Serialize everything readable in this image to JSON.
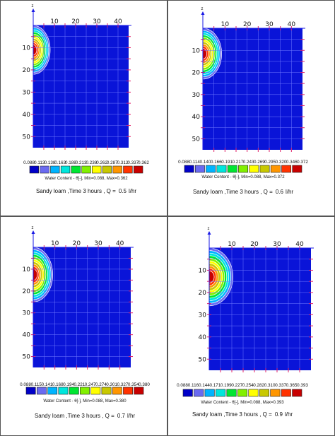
{
  "chart_data": [
    {
      "type": "heatmap",
      "title": "",
      "xlabel": "",
      "ylabel": "",
      "x_axis_marker": "x",
      "z_axis_marker": "z",
      "x_ticks": [
        10,
        20,
        30,
        40
      ],
      "y_ticks": [
        10,
        20,
        30,
        40,
        50
      ],
      "xlim": [
        0,
        45
      ],
      "ylim": [
        0,
        55
      ],
      "grid": true,
      "legend": {
        "position": "bottom",
        "title": "Water Content - θ[-], Min=0.088, Max=0.362",
        "min": 0.088,
        "max": 0.362,
        "scale_labels": [
          "0.088",
          "0.113",
          "0.138",
          "0.163",
          "0.188",
          "0.213",
          "0.238",
          "0.262",
          "0.287",
          "0.312",
          "0.337",
          "0.362"
        ]
      },
      "wetting_front": {
        "horizontal_extent": 8,
        "vertical_extent": 22
      },
      "caption": {
        "prefix": "Sandy loam ,Time 3 hours , Q =",
        "rate": "0.5",
        "unit": "l/hr"
      }
    },
    {
      "type": "heatmap",
      "title": "",
      "xlabel": "",
      "ylabel": "",
      "x_axis_marker": "x",
      "z_axis_marker": "z",
      "x_ticks": [
        10,
        20,
        30,
        40
      ],
      "y_ticks": [
        10,
        20,
        30,
        40,
        50
      ],
      "xlim": [
        0,
        45
      ],
      "ylim": [
        0,
        55
      ],
      "grid": true,
      "legend": {
        "position": "bottom",
        "title": "Water Content - θ[-], Min=0.088, Max=0.372",
        "min": 0.088,
        "max": 0.372,
        "scale_labels": [
          "0.088",
          "0.114",
          "0.140",
          "0.166",
          "0.191",
          "0.217",
          "0.243",
          "0.269",
          "0.295",
          "0.320",
          "0.346",
          "0.372"
        ]
      },
      "wetting_front": {
        "horizontal_extent": 8.5,
        "vertical_extent": 23
      },
      "caption": {
        "prefix": "Sandy loam ,Time 3 hours , Q =",
        "rate": "0.6",
        "unit": "l/hr"
      }
    },
    {
      "type": "heatmap",
      "title": "",
      "xlabel": "",
      "ylabel": "",
      "x_axis_marker": "x",
      "z_axis_marker": "z",
      "x_ticks": [
        10,
        20,
        30,
        40
      ],
      "y_ticks": [
        10,
        20,
        30,
        40,
        50
      ],
      "xlim": [
        0,
        45
      ],
      "ylim": [
        0,
        55
      ],
      "grid": true,
      "legend": {
        "position": "bottom",
        "title": "Water Content - θ[-], Min=0.088, Max=0.380",
        "min": 0.088,
        "max": 0.38,
        "scale_labels": [
          "0.088",
          "0.115",
          "0.141",
          "0.168",
          "0.194",
          "0.221",
          "0.247",
          "0.274",
          "0.301",
          "0.327",
          "0.354",
          "0.380"
        ]
      },
      "wetting_front": {
        "horizontal_extent": 9,
        "vertical_extent": 25
      },
      "caption": {
        "prefix": "Sandy loam ,Time 3 hours , Q =",
        "rate": "0.7",
        "unit": "l/hr"
      }
    },
    {
      "type": "heatmap",
      "title": "",
      "xlabel": "",
      "ylabel": "",
      "x_axis_marker": "x",
      "z_axis_marker": "z",
      "x_ticks": [
        10,
        20,
        30,
        40
      ],
      "y_ticks": [
        10,
        20,
        30,
        40,
        50
      ],
      "xlim": [
        0,
        45
      ],
      "ylim": [
        0,
        55
      ],
      "grid": true,
      "legend": {
        "position": "bottom",
        "title": "Water Content - θ[-], Min=0.088, Max=0.393",
        "min": 0.088,
        "max": 0.393,
        "scale_labels": [
          "0.088",
          "0.116",
          "0.144",
          "0.171",
          "0.199",
          "0.227",
          "0.254",
          "0.282",
          "0.310",
          "0.337",
          "0.365",
          "0.393"
        ]
      },
      "wetting_front": {
        "horizontal_extent": 10.5,
        "vertical_extent": 26
      },
      "caption": {
        "prefix": "Sandy loam ,Time 3 hours , Q =",
        "rate": "0.9",
        "unit": "l/hr"
      }
    }
  ],
  "colors": {
    "scale": [
      "#0000c8",
      "#6a6af0",
      "#00b4ff",
      "#00e6dc",
      "#00e632",
      "#82f000",
      "#ffff00",
      "#c8c800",
      "#ff9600",
      "#ff3200",
      "#c80000"
    ],
    "background_field": "#0a14d8",
    "grid": "#6e78ff",
    "tick_mark": "#e0206a"
  }
}
